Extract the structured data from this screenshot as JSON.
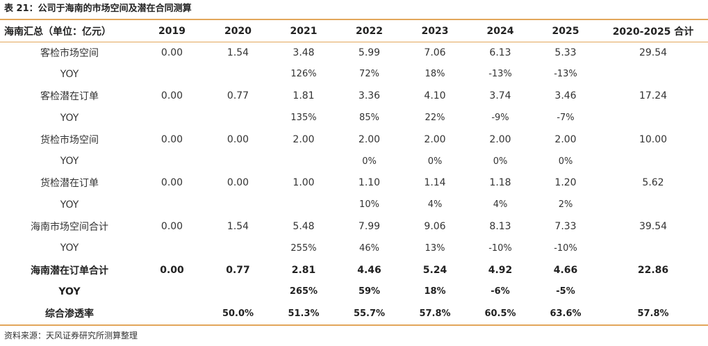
{
  "title": "表 21：公司于海南的市场空间及潜在合同测算",
  "header": [
    "海南汇总（单位：亿元）",
    "2019",
    "2020",
    "2021",
    "2022",
    "2023",
    "2024",
    "2025",
    "2020-2025 合计"
  ],
  "rows": [
    {
      "cells": [
        "客检市场空间",
        "0.00",
        "1.54",
        "3.48",
        "5.99",
        "7.06",
        "6.13",
        "5.33",
        "29.54"
      ],
      "bold": false
    },
    {
      "cells": [
        "YOY",
        "",
        "",
        "126%",
        "72%",
        "18%",
        "-13%",
        "-13%",
        ""
      ],
      "bold": false
    },
    {
      "cells": [
        "客检潜在订单",
        "0.00",
        "0.77",
        "1.81",
        "3.36",
        "4.10",
        "3.74",
        "3.46",
        "17.24"
      ],
      "bold": false
    },
    {
      "cells": [
        "YOY",
        "",
        "",
        "135%",
        "85%",
        "22%",
        "-9%",
        "-7%",
        ""
      ],
      "bold": false
    },
    {
      "cells": [
        "货检市场空间",
        "0.00",
        "0.00",
        "2.00",
        "2.00",
        "2.00",
        "2.00",
        "2.00",
        "10.00"
      ],
      "bold": false
    },
    {
      "cells": [
        "YOY",
        "",
        "",
        "",
        "0%",
        "0%",
        "0%",
        "0%",
        ""
      ],
      "bold": false
    },
    {
      "cells": [
        "货检潜在订单",
        "0.00",
        "0.00",
        "1.00",
        "1.10",
        "1.14",
        "1.18",
        "1.20",
        "5.62"
      ],
      "bold": false
    },
    {
      "cells": [
        "YOY",
        "",
        "",
        "",
        "10%",
        "4%",
        "4%",
        "2%",
        ""
      ],
      "bold": false
    },
    {
      "cells": [
        "海南市场空间合计",
        "0.00",
        "1.54",
        "5.48",
        "7.99",
        "9.06",
        "8.13",
        "7.33",
        "39.54"
      ],
      "bold": false
    },
    {
      "cells": [
        "YOY",
        "",
        "",
        "255%",
        "46%",
        "13%",
        "-10%",
        "-10%",
        ""
      ],
      "bold": false
    },
    {
      "cells": [
        "海南潜在订单合计",
        "0.00",
        "0.77",
        "2.81",
        "4.46",
        "5.24",
        "4.92",
        "4.66",
        "22.86"
      ],
      "bold": true
    },
    {
      "cells": [
        "YOY",
        "",
        "",
        "265%",
        "59%",
        "18%",
        "-6%",
        "-5%",
        ""
      ],
      "bold": true
    },
    {
      "cells": [
        "综合渗透率",
        "",
        "50.0%",
        "51.3%",
        "55.7%",
        "57.8%",
        "60.5%",
        "63.6%",
        "57.8%"
      ],
      "bold": true
    }
  ],
  "source": "资料来源：天风证券研究所测算整理",
  "colors": {
    "rule": "#e2a65a",
    "text": "#333333"
  }
}
